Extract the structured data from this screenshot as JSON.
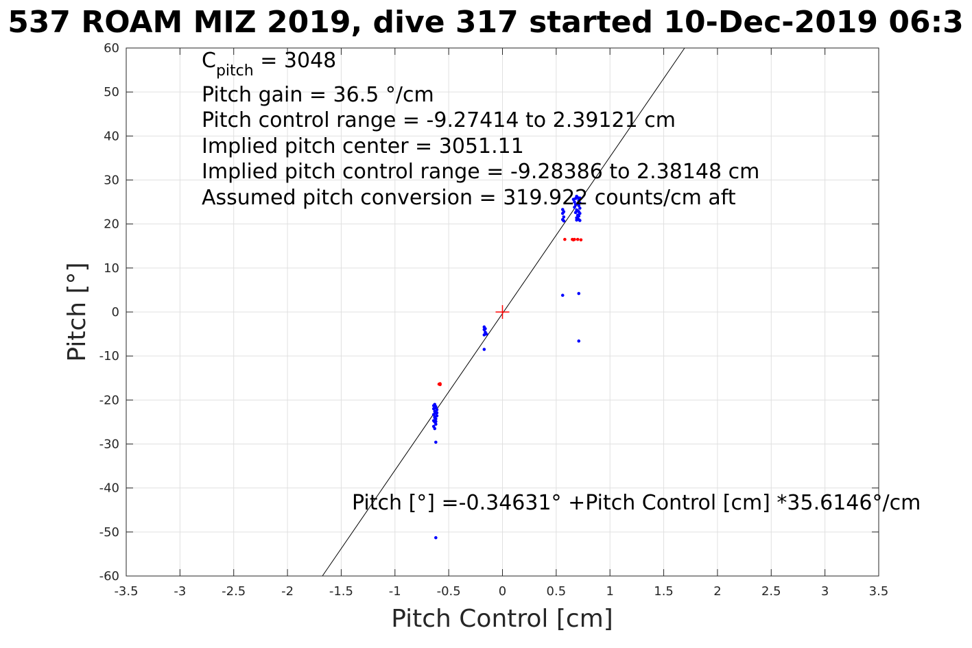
{
  "chart_data": {
    "type": "scatter",
    "title": "537 ROAM MIZ 2019, dive 317 started 10-Dec-2019 06:3",
    "xlabel": "Pitch Control [cm]",
    "ylabel": "Pitch [°]",
    "xlim": [
      -3.5,
      3.5
    ],
    "ylim": [
      -60,
      60
    ],
    "x_ticks": [
      -3.5,
      -3,
      -2.5,
      -2,
      -1.5,
      -1,
      -0.5,
      0,
      0.5,
      1,
      1.5,
      2,
      2.5,
      3,
      3.5
    ],
    "y_ticks": [
      -60,
      -50,
      -40,
      -30,
      -20,
      -10,
      0,
      10,
      20,
      30,
      40,
      50,
      60
    ],
    "x_tick_labels": [
      "-3.5",
      "-3",
      "-2.5",
      "-2",
      "-1.5",
      "-1",
      "-0.5",
      "0",
      "0.5",
      "1",
      "1.5",
      "2",
      "2.5",
      "3",
      "3.5"
    ],
    "y_tick_labels": [
      "-60",
      "-50",
      "-40",
      "-30",
      "-20",
      "-10",
      "0",
      "10",
      "20",
      "30",
      "40",
      "50",
      "60"
    ],
    "grid": true,
    "colors": {
      "good": "#0000ff",
      "flagged": "#ff0000",
      "fit": "#000000",
      "center": "#ff0000",
      "grid": "#e0e0e0"
    },
    "fit_line": {
      "intercept": -0.34631,
      "slope": 35.6146
    },
    "center_marker": {
      "x": 0,
      "y": 0
    },
    "series": [
      {
        "kind": "good",
        "points": [
          [
            -0.63,
            -21.0
          ],
          [
            -0.62,
            -21.5
          ],
          [
            -0.64,
            -22.0
          ],
          [
            -0.61,
            -22.2
          ],
          [
            -0.63,
            -22.6
          ],
          [
            -0.62,
            -23.0
          ],
          [
            -0.64,
            -23.3
          ],
          [
            -0.61,
            -23.6
          ],
          [
            -0.63,
            -24.0
          ],
          [
            -0.62,
            -24.3
          ],
          [
            -0.64,
            -24.7
          ],
          [
            -0.63,
            -25.0
          ],
          [
            -0.62,
            -25.5
          ],
          [
            -0.64,
            -26.0
          ],
          [
            -0.63,
            -26.5
          ],
          [
            -0.62,
            -21.8
          ],
          [
            -0.61,
            -22.9
          ],
          [
            -0.63,
            -23.8
          ],
          [
            -0.62,
            -24.9
          ],
          [
            -0.64,
            -21.3
          ],
          [
            -0.62,
            -29.6
          ],
          [
            -0.62,
            -51.3
          ],
          [
            -0.17,
            -3.4
          ],
          [
            -0.17,
            -4.0
          ],
          [
            -0.16,
            -4.6
          ],
          [
            -0.17,
            -5.2
          ],
          [
            -0.15,
            -5.0
          ],
          [
            -0.16,
            -3.8
          ],
          [
            -0.17,
            -8.5
          ],
          [
            0.56,
            22.4
          ],
          [
            0.57,
            21.6
          ],
          [
            0.56,
            21.0
          ],
          [
            0.57,
            22.8
          ],
          [
            0.56,
            23.3
          ],
          [
            0.57,
            20.7
          ],
          [
            0.66,
            25.6
          ],
          [
            0.67,
            25.0
          ],
          [
            0.68,
            24.4
          ],
          [
            0.67,
            23.8
          ],
          [
            0.69,
            23.2
          ],
          [
            0.68,
            22.6
          ],
          [
            0.7,
            22.0
          ],
          [
            0.69,
            21.4
          ],
          [
            0.71,
            21.0
          ],
          [
            0.7,
            26.0
          ],
          [
            0.71,
            25.4
          ],
          [
            0.72,
            24.8
          ],
          [
            0.71,
            24.2
          ],
          [
            0.72,
            23.6
          ],
          [
            0.7,
            23.0
          ],
          [
            0.72,
            22.4
          ],
          [
            0.71,
            21.8
          ],
          [
            0.72,
            20.8
          ],
          [
            0.69,
            26.3
          ],
          [
            0.7,
            24.6
          ],
          [
            0.68,
            25.8
          ],
          [
            0.71,
            22.8
          ],
          [
            0.69,
            20.9
          ],
          [
            0.72,
            25.9
          ],
          [
            0.7,
            21.2
          ],
          [
            0.56,
            3.8
          ],
          [
            0.71,
            4.2
          ],
          [
            0.71,
            -6.6
          ]
        ]
      },
      {
        "kind": "flagged",
        "points": [
          [
            -0.59,
            -16.4
          ],
          [
            -0.58,
            -16.3
          ],
          [
            -0.58,
            -16.5
          ],
          [
            0.58,
            16.5
          ],
          [
            0.65,
            16.5
          ],
          [
            0.66,
            16.4
          ],
          [
            0.67,
            16.5
          ],
          [
            0.7,
            16.5
          ],
          [
            0.73,
            16.4
          ]
        ]
      }
    ],
    "annotations": {
      "cpitch_main": "C",
      "cpitch_sub": "pitch",
      "cpitch_value": " = 3048",
      "pitch_gain": "Pitch gain = 36.5 °/cm",
      "pitch_control_range": "Pitch control range = -9.27414 to 2.39121 cm",
      "implied_center": "Implied pitch center = 3051.11",
      "implied_range": "Implied pitch control range = -9.28386 to 2.38148 cm",
      "conversion": "Assumed pitch conversion = 319.922 counts/cm aft",
      "fit_equation": "Pitch [°] =-0.34631° +Pitch Control [cm] *35.6146°/cm"
    }
  }
}
